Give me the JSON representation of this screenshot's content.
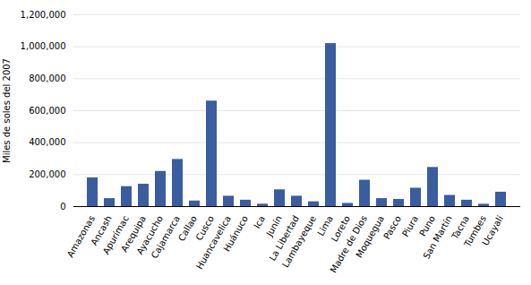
{
  "chart_data": {
    "type": "bar",
    "categories": [
      "Amazonas",
      "Ancash",
      "Apurímac",
      "Arequipa",
      "Ayacucho",
      "Cajamarca",
      "Callao",
      "Cusco",
      "Huancavelica",
      "Huánuco",
      "Ica",
      "Junín",
      "La Libertad",
      "Lambayeque",
      "Lima",
      "Loreto",
      "Madre de Dios",
      "Moquegua",
      "Pasco",
      "Piura",
      "Puno",
      "San Martín",
      "Tacna",
      "Tumbes",
      "Ucayali"
    ],
    "values": [
      180000,
      50000,
      125000,
      140000,
      220000,
      295000,
      35000,
      660000,
      65000,
      40000,
      15000,
      105000,
      65000,
      30000,
      1020000,
      20000,
      165000,
      50000,
      45000,
      115000,
      245000,
      70000,
      40000,
      15000,
      90000
    ],
    "color": "#3a5d9f",
    "ylabel": "Miles de soles del 2007",
    "ylim": [
      0,
      1200000
    ],
    "yticks": [
      0,
      {
        "value": 200000,
        "label": "200,000"
      },
      {
        "value": 400000,
        "label": "400,000"
      },
      {
        "value": 600000,
        "label": "600,000"
      },
      {
        "value": 800000,
        "label": "800,000"
      },
      {
        "value": 1000000,
        "label": "1,000,000"
      },
      {
        "value": 1200000,
        "label": "1,200,000"
      }
    ],
    "grid": true
  }
}
